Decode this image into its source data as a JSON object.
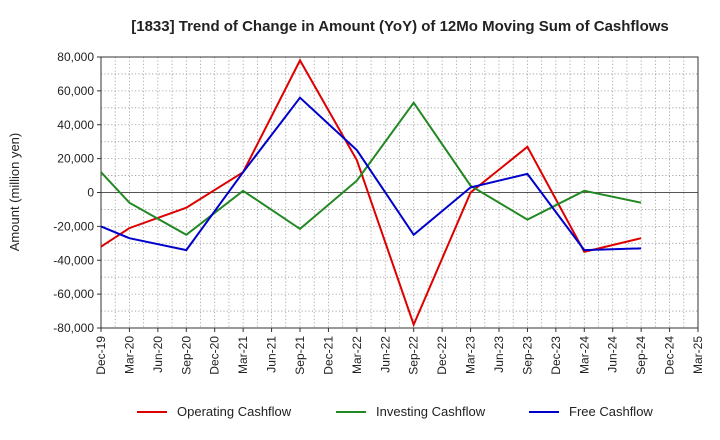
{
  "chart_data": {
    "type": "line",
    "title": "[1833]  Trend of Change in Amount (YoY) of 12Mo Moving Sum of Cashflows",
    "xlabel": "",
    "ylabel": "Amount (million yen)",
    "ylim": [
      -80000,
      80000
    ],
    "yticks": [
      80000,
      60000,
      40000,
      20000,
      0,
      -20000,
      -40000,
      -60000,
      -80000
    ],
    "ytick_labels": [
      "80,000",
      "60,000",
      "40,000",
      "20,000",
      "0",
      "-20,000",
      "-40,000",
      "-60,000",
      "-80,000"
    ],
    "categories": [
      "Dec-19",
      "Mar-20",
      "Jun-20",
      "Sep-20",
      "Dec-20",
      "Mar-21",
      "Jun-21",
      "Sep-21",
      "Dec-21",
      "Mar-22",
      "Jun-22",
      "Sep-22",
      "Dec-22",
      "Mar-23",
      "Jun-23",
      "Sep-23",
      "Dec-23",
      "Mar-24",
      "Jun-24",
      "Sep-24",
      "Dec-24",
      "Mar-25"
    ],
    "grid": true,
    "legend_position": "bottom",
    "series": [
      {
        "name": "Operating Cashflow",
        "color": "#dd0000",
        "points": [
          [
            0,
            -32000
          ],
          [
            1,
            -21000
          ],
          [
            3,
            -9000
          ],
          [
            5,
            12000
          ],
          [
            7,
            78000
          ],
          [
            9,
            19000
          ],
          [
            11,
            -78000
          ],
          [
            13,
            0
          ],
          [
            15,
            27000
          ],
          [
            17,
            -35000
          ],
          [
            19,
            -27000
          ]
        ]
      },
      {
        "name": "Investing Cashflow",
        "color": "#228822",
        "points": [
          [
            0,
            12000
          ],
          [
            1,
            -6000
          ],
          [
            3,
            -25000
          ],
          [
            5,
            1000
          ],
          [
            7,
            -21500
          ],
          [
            9,
            7000
          ],
          [
            11,
            53000
          ],
          [
            13,
            4000
          ],
          [
            15,
            -16000
          ],
          [
            17,
            1000
          ],
          [
            19,
            -6000
          ]
        ]
      },
      {
        "name": "Free Cashflow",
        "color": "#0000cc",
        "points": [
          [
            0,
            -20000
          ],
          [
            1,
            -27000
          ],
          [
            3,
            -34000
          ],
          [
            5,
            12000
          ],
          [
            7,
            56000
          ],
          [
            9,
            25000
          ],
          [
            11,
            -25000
          ],
          [
            13,
            3000
          ],
          [
            15,
            11000
          ],
          [
            17,
            -34000
          ],
          [
            19,
            -33000
          ]
        ]
      }
    ]
  }
}
